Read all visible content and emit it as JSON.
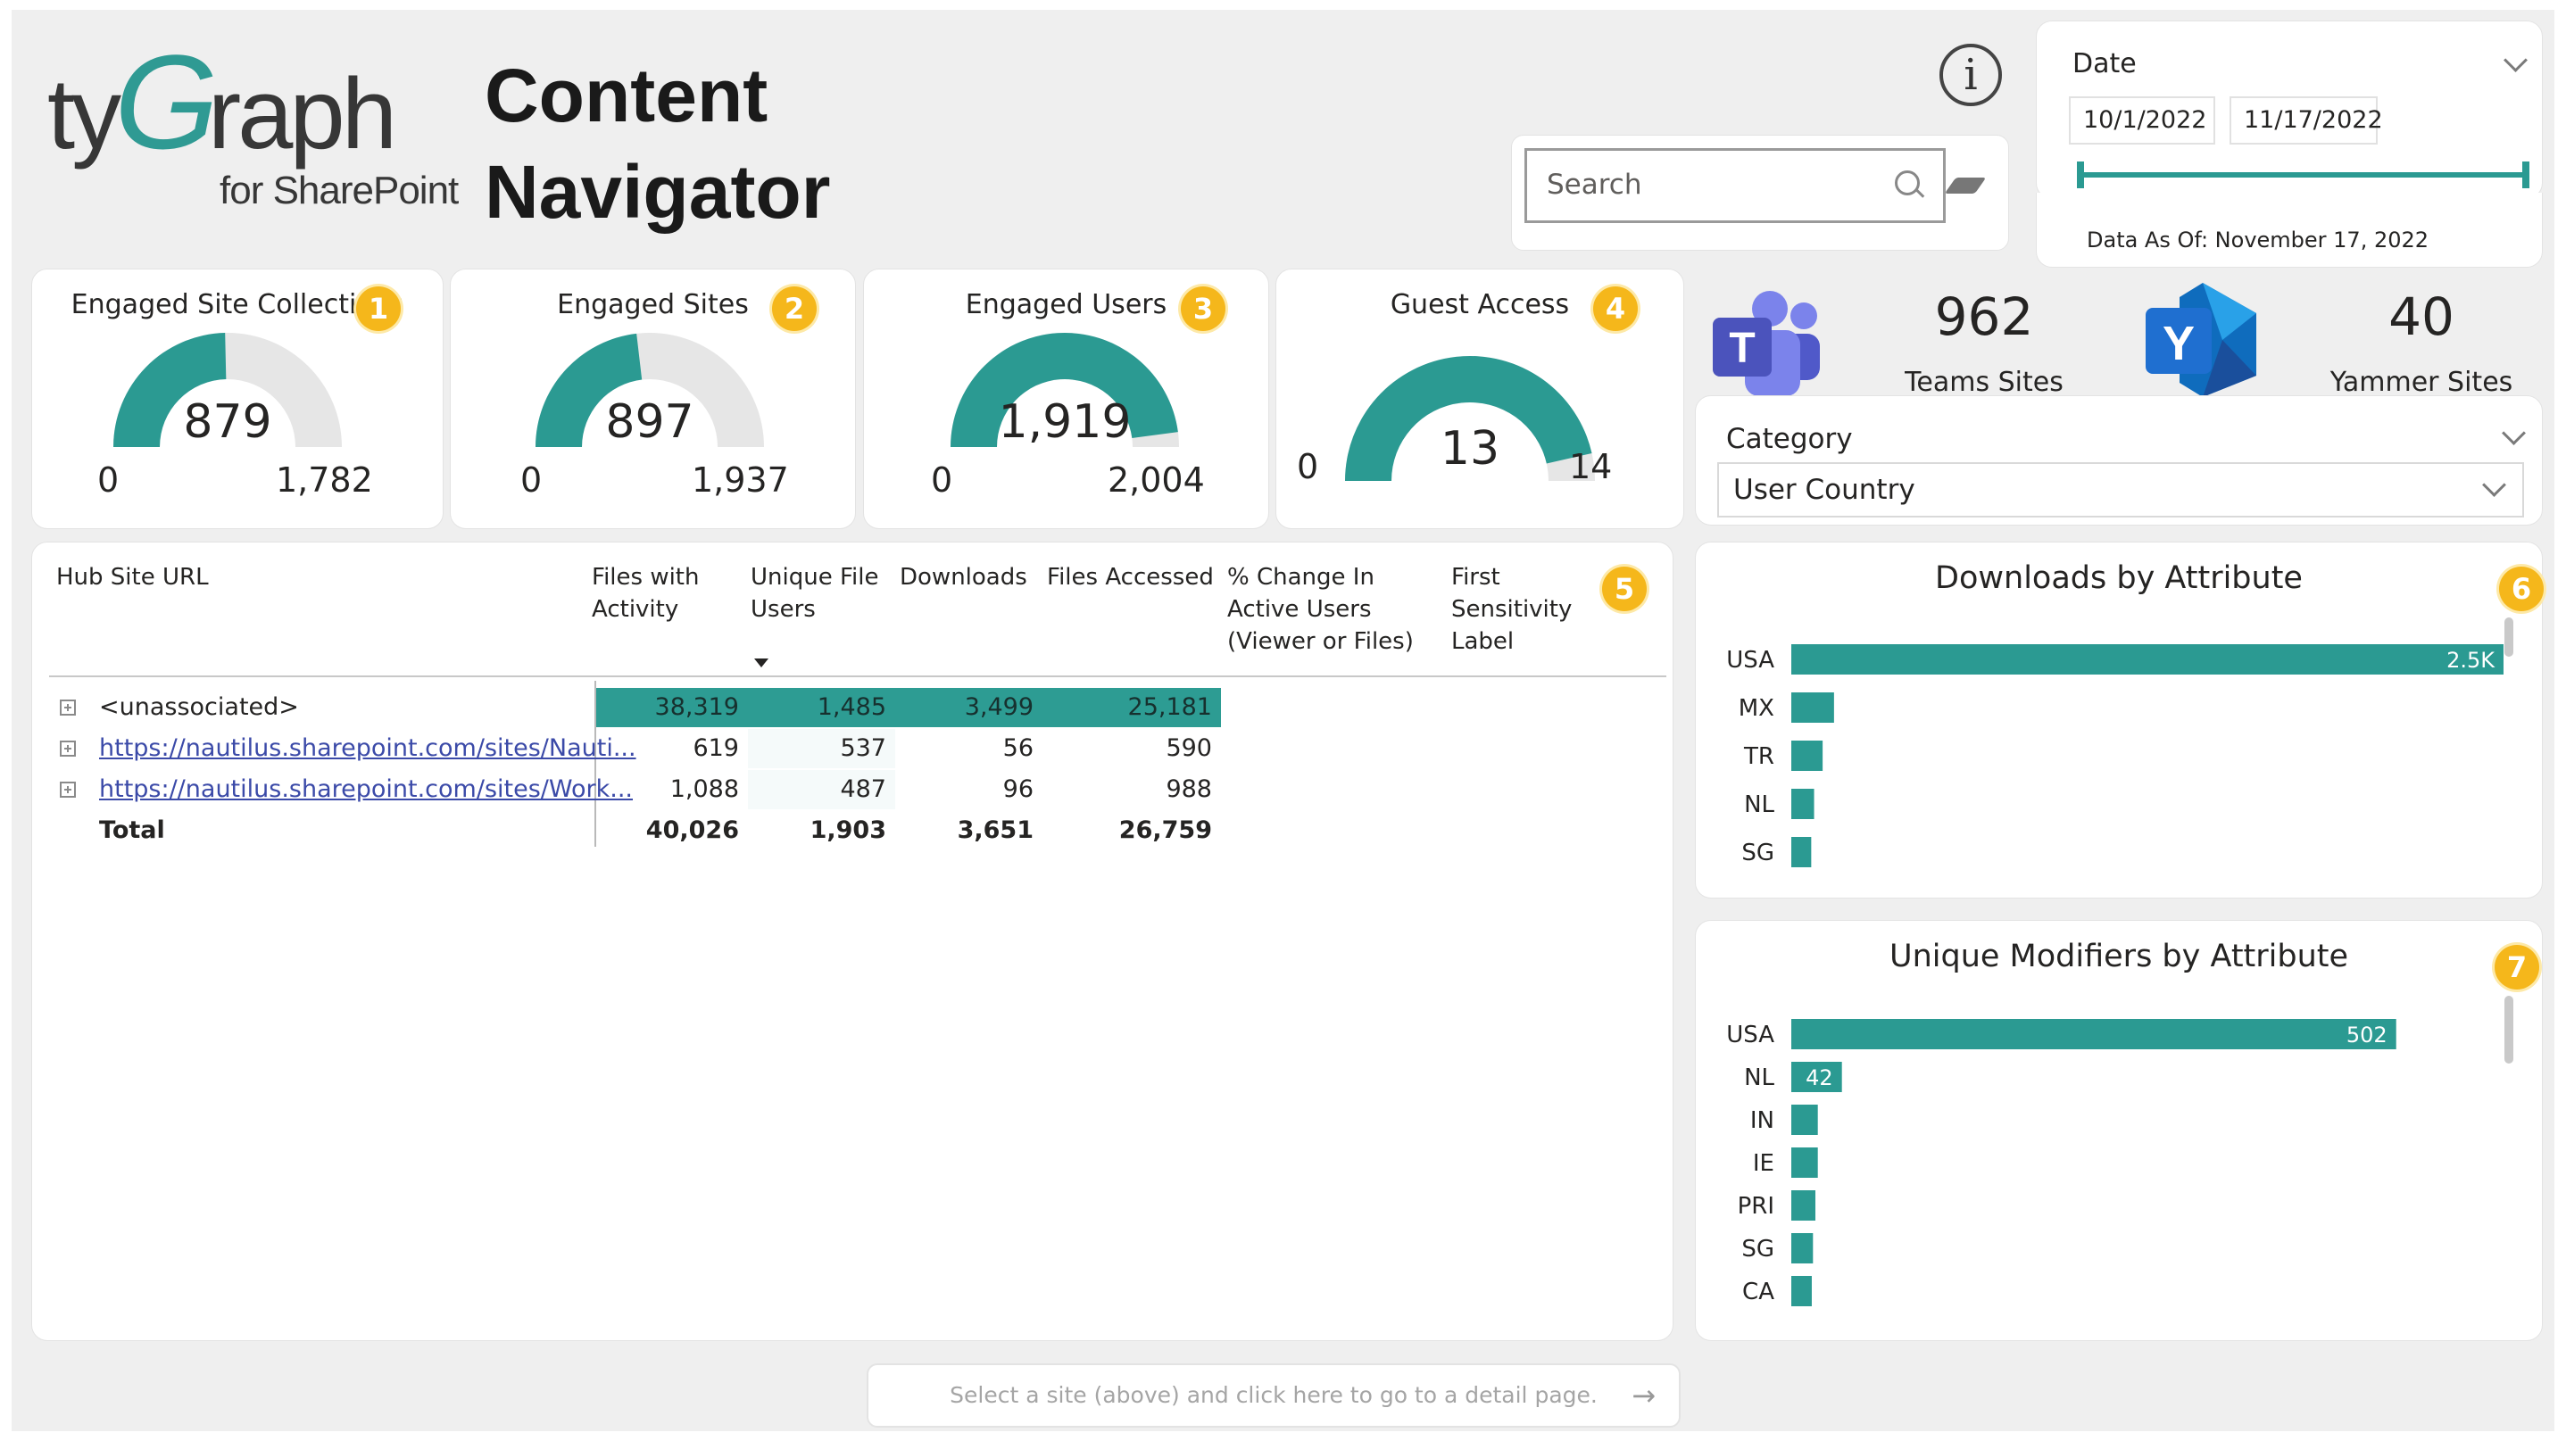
{
  "header": {
    "logo_brand_pre": "ty",
    "logo_brand_g": "G",
    "logo_brand_post": "raph",
    "logo_sub": "for SharePoint",
    "title_line1": "Content",
    "title_line2": "Navigator",
    "info_icon": "info-icon",
    "info_glyph": "i"
  },
  "search": {
    "placeholder": "Search"
  },
  "date_filter": {
    "label": "Date",
    "start": "10/1/2022",
    "end": "11/17/2022",
    "data_as_of": "Data As Of: November 17, 2022"
  },
  "kpis": [
    {
      "title": "Engaged Site Collections",
      "badge": "1",
      "value": "879",
      "min": "0",
      "max": "1,782",
      "fraction": 0.493
    },
    {
      "title": "Engaged Sites",
      "badge": "2",
      "value": "897",
      "min": "0",
      "max": "1,937",
      "fraction": 0.463
    },
    {
      "title": "Engaged Users",
      "badge": "3",
      "value": "1,919",
      "min": "0",
      "max": "2,004",
      "fraction": 0.958
    },
    {
      "title": "Guest Access",
      "badge": "4",
      "value": "13",
      "min": "0",
      "max": "14",
      "fraction": 0.929
    }
  ],
  "stats": {
    "teams_count": "962",
    "teams_label": "Teams Sites",
    "teams_icon": "teams-icon",
    "yammer_count": "40",
    "yammer_label": "Yammer Sites",
    "yammer_icon": "yammer-icon"
  },
  "category": {
    "label": "Category",
    "selected": "User Country"
  },
  "table": {
    "badge": "5",
    "headers": {
      "hub": "Hub Site URL",
      "files_activity": "Files with Activity",
      "unique_users": "Unique File Users",
      "downloads": "Downloads",
      "files_accessed": "Files Accessed",
      "pct_change": "% Change In Active Users (Viewer or Files)",
      "sensitivity": "First Sensitivity Label"
    },
    "rows": [
      {
        "hub": "<unassociated>",
        "files_activity": "38,319",
        "unique_users": "1,485",
        "downloads": "3,499",
        "files_accessed": "25,181"
      },
      {
        "hub": "https://nautilus.sharepoint.com/sites/Nauti...",
        "files_activity": "619",
        "unique_users": "537",
        "downloads": "56",
        "files_accessed": "590"
      },
      {
        "hub": "https://nautilus.sharepoint.com/sites/Work...",
        "files_activity": "1,088",
        "unique_users": "487",
        "downloads": "96",
        "files_accessed": "988"
      }
    ],
    "total": {
      "label": "Total",
      "files_activity": "40,026",
      "unique_users": "1,903",
      "downloads": "3,651",
      "files_accessed": "26,759"
    }
  },
  "chart_data": [
    {
      "type": "bar",
      "title": "Downloads by Attribute",
      "badge": "6",
      "categories": [
        "USA",
        "MX",
        "TR",
        "NL",
        "SG"
      ],
      "values": [
        2500,
        150,
        110,
        80,
        70
      ],
      "data_labels": [
        "2.5K",
        "",
        "",
        "",
        ""
      ],
      "orientation": "horizontal",
      "xlim": [
        0,
        2500
      ]
    },
    {
      "type": "bar",
      "title": "Unique Modifiers by Attribute",
      "badge": "7",
      "categories": [
        "USA",
        "NL",
        "IN",
        "IE",
        "PRI",
        "SG",
        "CA"
      ],
      "values": [
        502,
        42,
        22,
        22,
        20,
        18,
        17
      ],
      "data_labels": [
        "502",
        "42",
        "",
        "",
        "",
        "",
        ""
      ],
      "orientation": "horizontal",
      "xlim": [
        0,
        600
      ]
    }
  ],
  "footer": {
    "detail_hint": "Select a site (above) and click here to go to a detail page.",
    "arrow": "→"
  },
  "colors": {
    "accent": "#2b9a92",
    "badge": "#f5b71b",
    "gauge_bg": "#e6e6e6"
  }
}
